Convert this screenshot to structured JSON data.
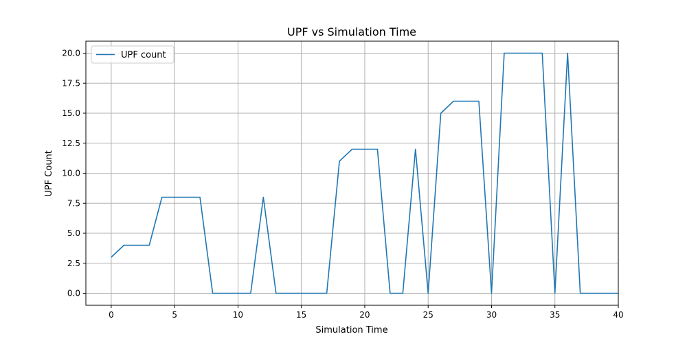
{
  "chart_data": {
    "type": "line",
    "title": "UPF vs Simulation Time",
    "xlabel": "Simulation Time",
    "ylabel": "UPF Count",
    "xlim": [
      -2,
      40
    ],
    "ylim": [
      -1,
      21
    ],
    "xticks": [
      0,
      5,
      10,
      15,
      20,
      25,
      30,
      35,
      40
    ],
    "yticks": [
      0.0,
      2.5,
      5.0,
      7.5,
      10.0,
      12.5,
      15.0,
      17.5,
      20.0
    ],
    "xtick_labels": [
      "0",
      "5",
      "10",
      "15",
      "20",
      "25",
      "30",
      "35",
      "40"
    ],
    "ytick_labels": [
      "0.0",
      "2.5",
      "5.0",
      "7.5",
      "10.0",
      "12.5",
      "15.0",
      "17.5",
      "20.0"
    ],
    "grid": true,
    "legend_position": "top-left",
    "x": [
      0,
      1,
      2,
      3,
      4,
      5,
      6,
      7,
      8,
      9,
      10,
      11,
      12,
      13,
      14,
      15,
      16,
      17,
      18,
      19,
      20,
      21,
      22,
      23,
      24,
      25,
      26,
      27,
      28,
      29,
      30,
      31,
      32,
      33,
      34,
      35,
      36,
      37,
      38,
      39,
      40
    ],
    "series": [
      {
        "name": "UPF count",
        "color": "#1f77b4",
        "values": [
          3,
          4,
          4,
          4,
          8,
          8,
          8,
          8,
          0,
          0,
          0,
          0,
          8,
          0,
          0,
          0,
          0,
          0,
          11,
          12,
          12,
          12,
          0,
          0,
          12,
          0,
          15,
          16,
          16,
          16,
          0,
          20,
          20,
          20,
          20,
          0,
          20,
          0,
          0,
          0,
          0
        ]
      }
    ]
  }
}
